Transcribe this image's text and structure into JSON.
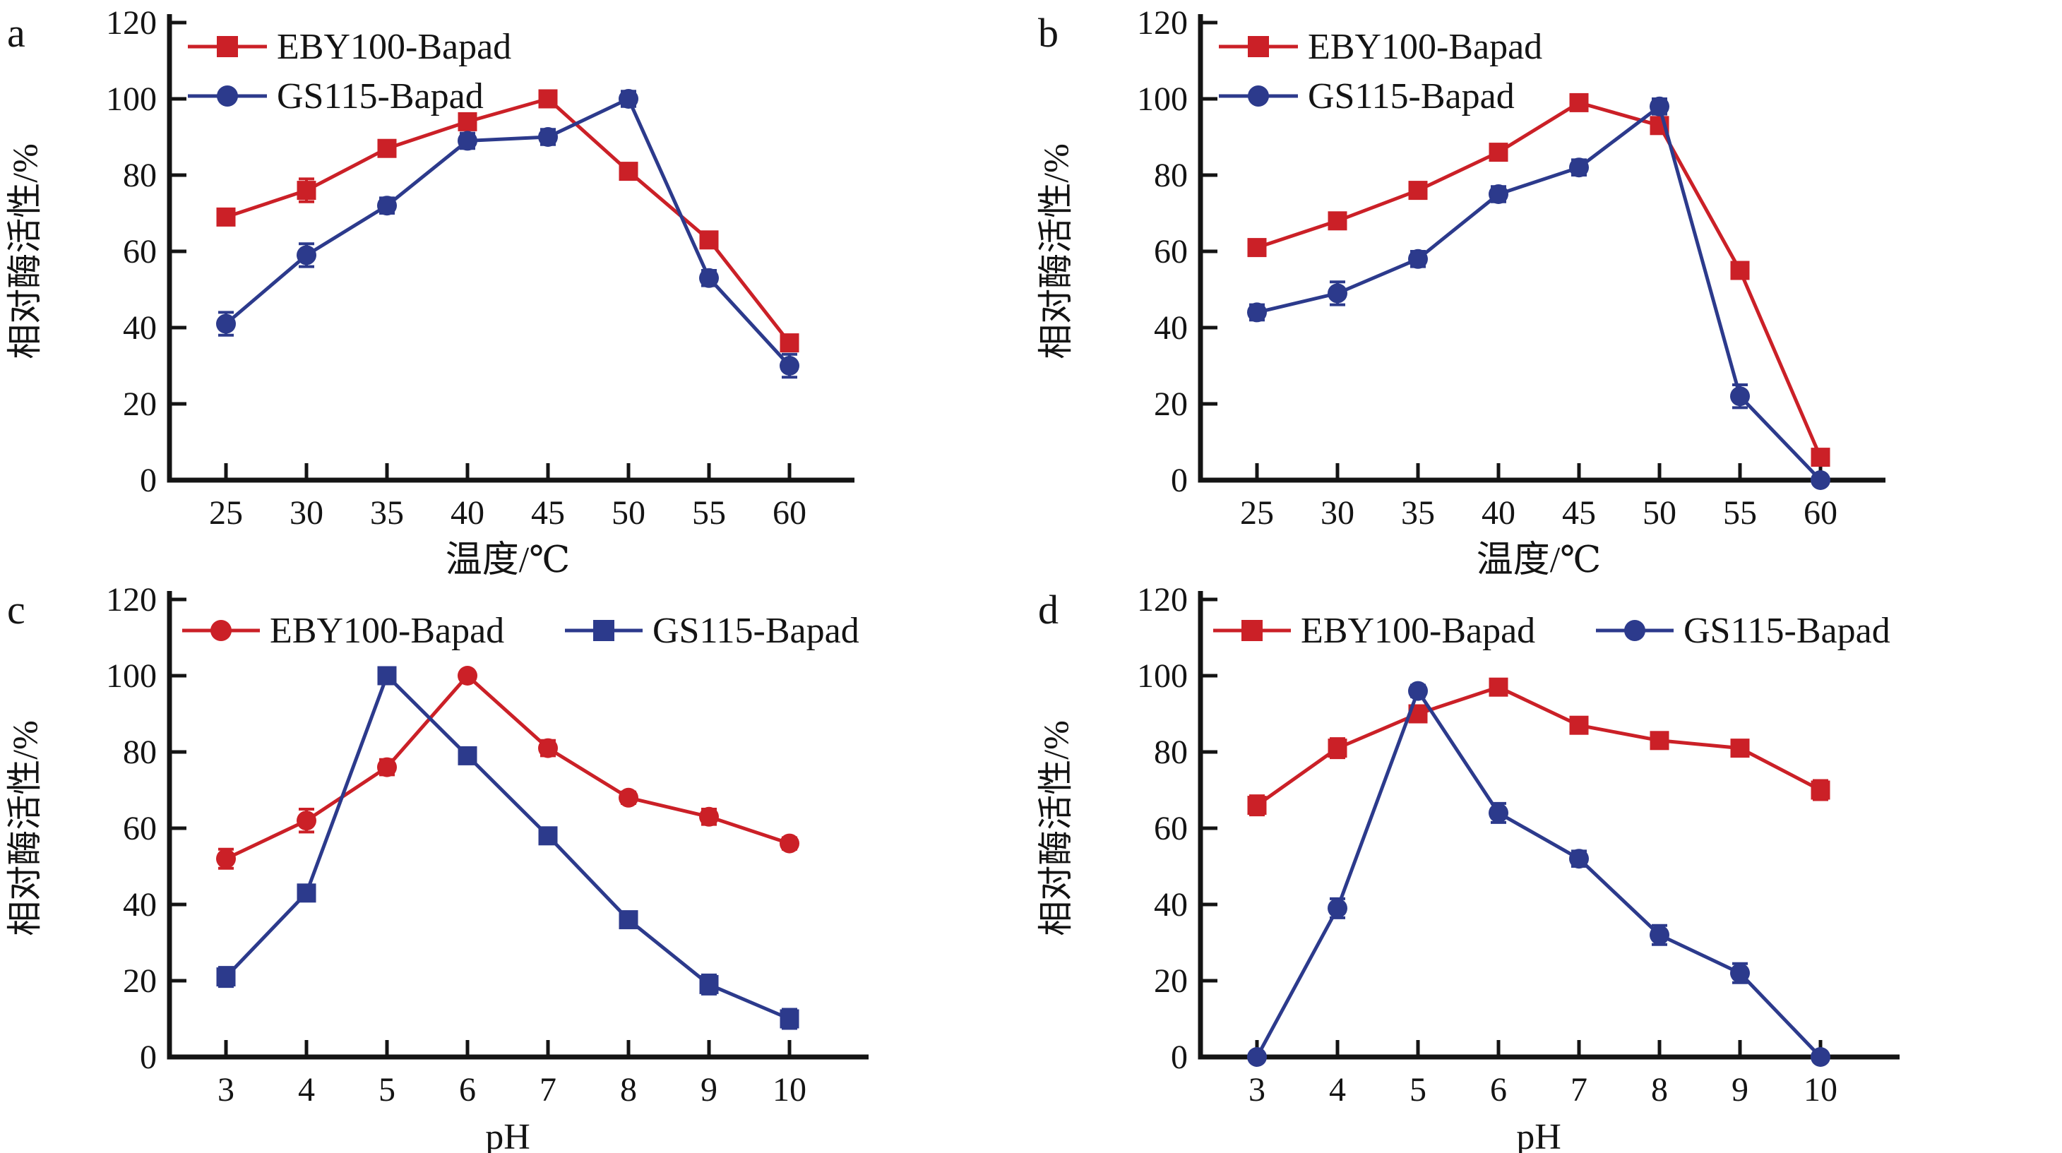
{
  "chart_data": [
    {
      "letter": "a",
      "type": "line",
      "xlabel": "温度/℃",
      "ylabel": "相对酶活性/%",
      "x": [
        25,
        30,
        35,
        40,
        45,
        50,
        55,
        60
      ],
      "ylim": [
        0,
        120
      ],
      "yticks": [
        0,
        20,
        40,
        60,
        80,
        100,
        120
      ],
      "grid": false,
      "legend_position": "top-left-stacked",
      "series": [
        {
          "name": "EBY100-Bapad",
          "color": "#cb2027",
          "marker": "square",
          "values": [
            69,
            76,
            87,
            94,
            100,
            81,
            63,
            36
          ],
          "errors": [
            2,
            3,
            2,
            2,
            1.5,
            2,
            2,
            2
          ]
        },
        {
          "name": "GS115-Bapad",
          "color": "#2c3a8c",
          "marker": "circle",
          "values": [
            41,
            59,
            72,
            89,
            90,
            100,
            53,
            30
          ],
          "errors": [
            3,
            3,
            2,
            2,
            2,
            2,
            2,
            3
          ]
        }
      ]
    },
    {
      "letter": "b",
      "type": "line",
      "xlabel": "温度/℃",
      "ylabel": "相对酶活性/%",
      "x": [
        25,
        30,
        35,
        40,
        45,
        50,
        55,
        60
      ],
      "ylim": [
        0,
        120
      ],
      "yticks": [
        0,
        20,
        40,
        60,
        80,
        100,
        120
      ],
      "grid": false,
      "legend_position": "top-left-stacked",
      "series": [
        {
          "name": "EBY100-Bapad",
          "color": "#cb2027",
          "marker": "square",
          "values": [
            61,
            68,
            76,
            86,
            99,
            93,
            55,
            6
          ],
          "errors": [
            2,
            2,
            2,
            2,
            2,
            2,
            2,
            1.5
          ]
        },
        {
          "name": "GS115-Bapad",
          "color": "#2c3a8c",
          "marker": "circle",
          "values": [
            44,
            49,
            58,
            75,
            82,
            98,
            22,
            0
          ],
          "errors": [
            2,
            3,
            2,
            2,
            2,
            2,
            3,
            0.5
          ]
        }
      ]
    },
    {
      "letter": "c",
      "type": "line",
      "xlabel": "pH",
      "ylabel": "相对酶活性/%",
      "x": [
        3,
        4,
        5,
        6,
        7,
        8,
        9,
        10
      ],
      "ylim": [
        0,
        120
      ],
      "yticks": [
        0,
        20,
        40,
        60,
        80,
        100,
        120
      ],
      "grid": false,
      "legend_position": "top-row",
      "series": [
        {
          "name": "EBY100-Bapad",
          "color": "#cb2027",
          "marker": "circle",
          "values": [
            52,
            62,
            76,
            100,
            81,
            68,
            63,
            56
          ],
          "errors": [
            2.5,
            3,
            2,
            1,
            2,
            1.5,
            2,
            1.5
          ]
        },
        {
          "name": "GS115-Bapad",
          "color": "#2c3a8c",
          "marker": "square",
          "values": [
            21,
            43,
            100,
            79,
            58,
            36,
            19,
            10
          ],
          "errors": [
            2.5,
            2,
            1,
            2,
            1.5,
            2,
            2.5,
            2.5
          ]
        }
      ]
    },
    {
      "letter": "d",
      "type": "line",
      "xlabel": "pH",
      "ylabel": "相对酶活性/%",
      "x": [
        3,
        4,
        5,
        6,
        7,
        8,
        9,
        10
      ],
      "ylim": [
        0,
        120
      ],
      "yticks": [
        0,
        20,
        40,
        60,
        80,
        100,
        120
      ],
      "grid": false,
      "legend_position": "top-row",
      "series": [
        {
          "name": "EBY100-Bapad",
          "color": "#cb2027",
          "marker": "square",
          "values": [
            66,
            81,
            90,
            97,
            87,
            83,
            81,
            70
          ],
          "errors": [
            2.5,
            2.5,
            2,
            2,
            1.5,
            1.5,
            1.5,
            2.5
          ]
        },
        {
          "name": "GS115-Bapad",
          "color": "#2c3a8c",
          "marker": "circle",
          "values": [
            0,
            39,
            96,
            64,
            52,
            32,
            22,
            0
          ],
          "errors": [
            0.5,
            2.5,
            1.5,
            2.5,
            2,
            2.5,
            2.5,
            0.5
          ]
        }
      ]
    }
  ]
}
